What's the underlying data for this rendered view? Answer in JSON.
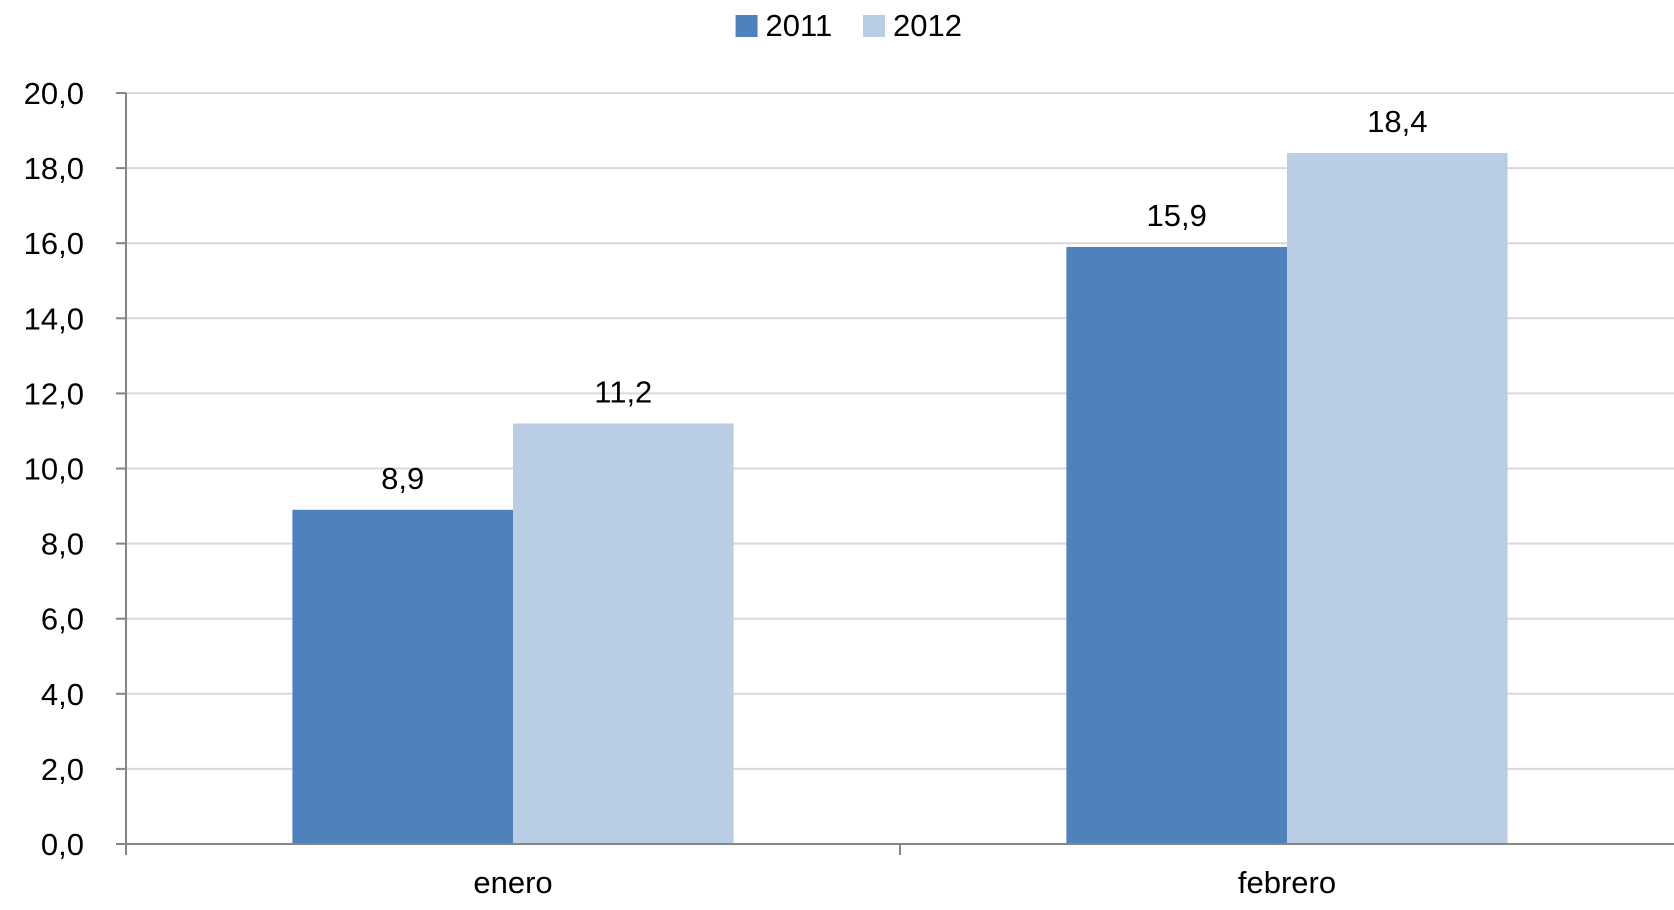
{
  "chart_data": {
    "type": "bar",
    "title": "",
    "xlabel": "",
    "ylabel": "",
    "categories": [
      "enero",
      "febrero"
    ],
    "series": [
      {
        "name": "2011",
        "values": [
          8.9,
          15.9
        ],
        "value_labels": [
          "8,9",
          "15,9"
        ],
        "color": "#4f81bd"
      },
      {
        "name": "2012",
        "values": [
          11.2,
          18.4
        ],
        "value_labels": [
          "11,2",
          "18,4"
        ],
        "color": "#b9cde5"
      }
    ],
    "ylim": [
      0,
      20
    ],
    "yticks": [
      0,
      2,
      4,
      6,
      8,
      10,
      12,
      14,
      16,
      18,
      20
    ],
    "ytick_labels": [
      "0,0",
      "2,0",
      "4,0",
      "6,0",
      "8,0",
      "10,0",
      "12,0",
      "14,0",
      "16,0",
      "18,0",
      "20,0"
    ],
    "grid": true,
    "legend_position": "top-center",
    "colors": {
      "grid": "#d9d9d9",
      "axis": "#868686"
    }
  }
}
